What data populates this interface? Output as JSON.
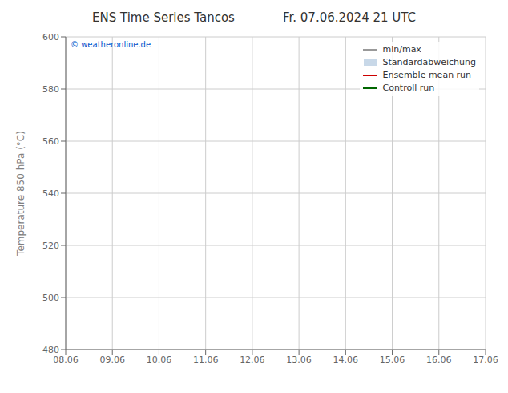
{
  "chart_data": {
    "type": "line",
    "title": "ENS Time Series Tancos",
    "subtitle": "Fr. 07.06.2024 21 UTC",
    "y_label": "Temperature 850 hPa (°C)",
    "categories": [
      "08.06",
      "09.06",
      "10.06",
      "11.06",
      "12.06",
      "13.06",
      "14.06",
      "15.06",
      "16.06",
      "17.06"
    ],
    "series": [
      {
        "name": "min/max",
        "type": "line",
        "color": "#999999",
        "values": [
          null,
          null,
          null,
          null,
          null,
          null,
          null,
          null,
          null,
          null
        ]
      },
      {
        "name": "Standardabweichung",
        "type": "area",
        "color": "#c8d8e8",
        "values": [
          null,
          null,
          null,
          null,
          null,
          null,
          null,
          null,
          null,
          null
        ]
      },
      {
        "name": "Ensemble mean run",
        "type": "line",
        "color": "#cc0000",
        "values": [
          null,
          null,
          null,
          null,
          null,
          null,
          null,
          null,
          null,
          null
        ]
      },
      {
        "name": "Controll run",
        "type": "line",
        "color": "#006600",
        "values": [
          null,
          null,
          null,
          null,
          null,
          null,
          null,
          null,
          null,
          null
        ]
      }
    ],
    "ylim": [
      480,
      600
    ],
    "yticks": [
      480,
      500,
      520,
      540,
      560,
      580,
      600
    ],
    "grid": true,
    "legend": "upper right",
    "annotations": [
      {
        "text": "© weatheronline.de",
        "color": "#0055cc"
      }
    ]
  }
}
